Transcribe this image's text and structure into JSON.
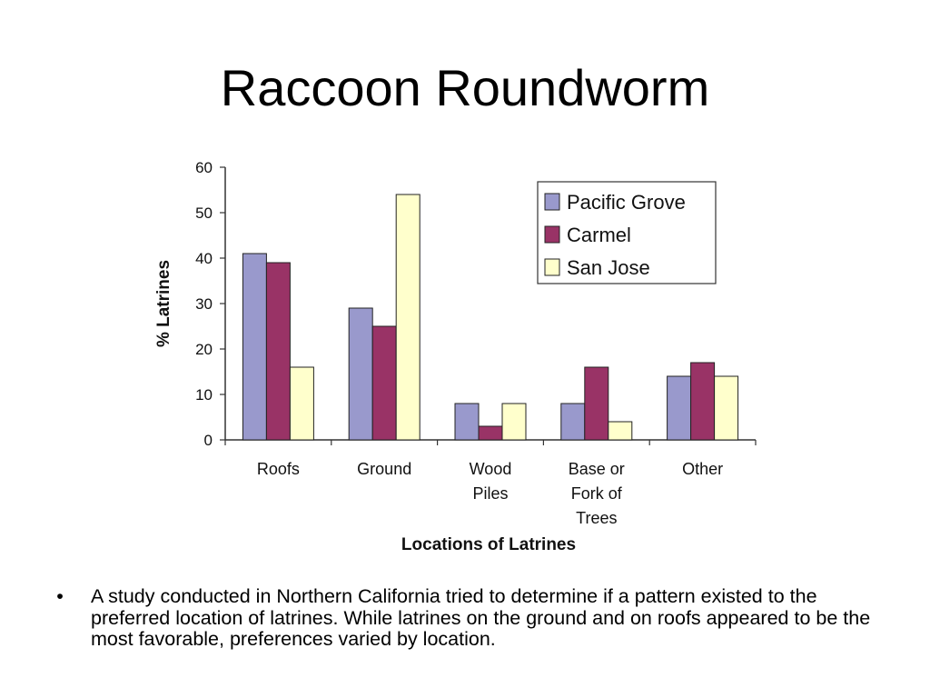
{
  "slide": {
    "title": "Raccoon Roundworm",
    "bullet_marker": "•",
    "bullets": [
      "A study conducted in Northern California tried to determine if a pattern existed to the preferred location of latrines. While latrines on the ground and on roofs appeared to be the most favorable, preferences varied by location."
    ]
  },
  "chart_data": {
    "type": "bar",
    "title": "",
    "xlabel": "Locations of Latrines",
    "ylabel": "% Latrines",
    "categories": [
      [
        "Roofs"
      ],
      [
        "Ground"
      ],
      [
        "Wood",
        "Piles"
      ],
      [
        "Base or",
        "Fork of",
        "Trees"
      ],
      [
        "Other"
      ]
    ],
    "series": [
      {
        "name": "Pacific Grove",
        "color": "#9999cc",
        "values": [
          41,
          29,
          8,
          8,
          14
        ]
      },
      {
        "name": "Carmel",
        "color": "#993366",
        "values": [
          39,
          25,
          3,
          16,
          17
        ]
      },
      {
        "name": "San Jose",
        "color": "#ffffcc",
        "values": [
          16,
          54,
          8,
          4,
          14
        ]
      }
    ],
    "ylim": [
      0,
      60
    ],
    "yticks": [
      0,
      10,
      20,
      30,
      40,
      50,
      60
    ],
    "grid": false,
    "legend_position": "top-right"
  }
}
